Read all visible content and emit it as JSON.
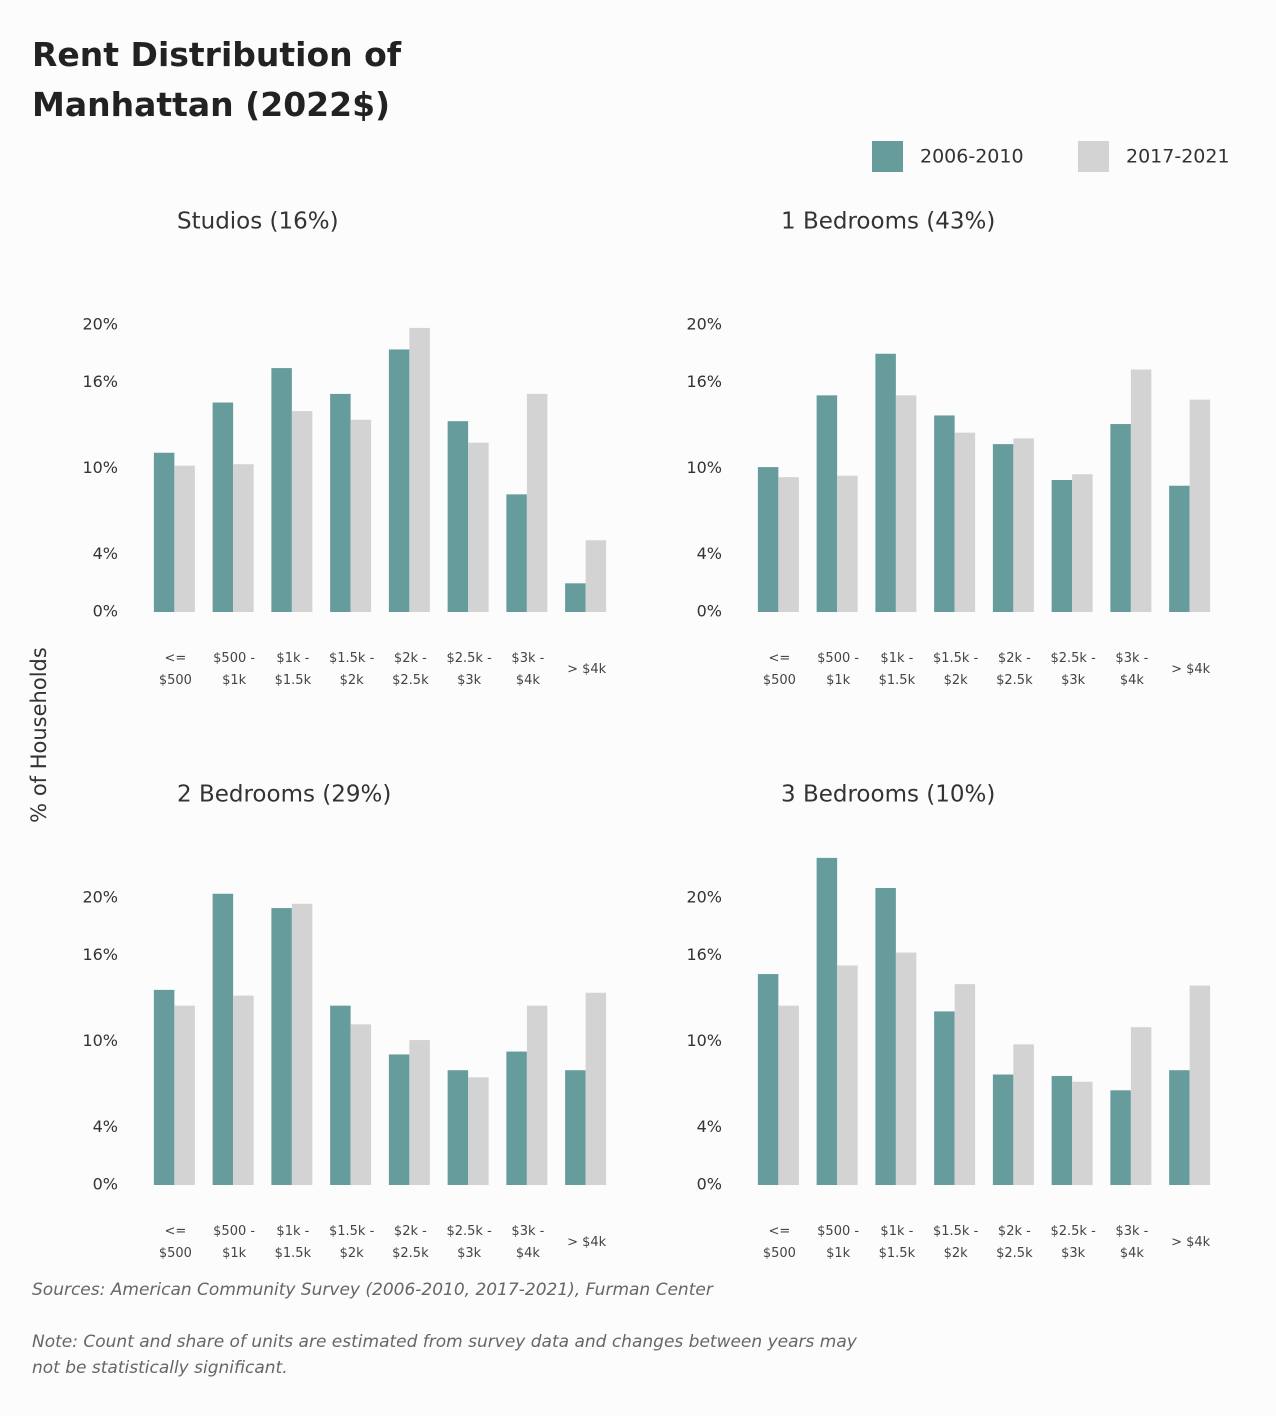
{
  "chart_data": {
    "type": "bar",
    "title": "Rent Distribution of Manhattan (2022$)",
    "y_label": "% of Households",
    "categories": [
      "<= $500",
      "$500 - $1k",
      "$1k - $1.5k",
      "$1.5k - $2k",
      "$2k - $2.5k",
      "$2.5k - $3k",
      "$3k - $4k",
      "> $4k"
    ],
    "series": [
      {
        "name": "2006-2010",
        "color": "#669c9c"
      },
      {
        "name": "2017-2021",
        "color": "#d3d3d3"
      }
    ],
    "ylim": [
      0,
      23
    ],
    "yticks": [
      {
        "value": 0,
        "label": "0%"
      },
      {
        "value": 4,
        "label": "4%"
      },
      {
        "value": 10,
        "label": "10%"
      },
      {
        "value": 16,
        "label": "16%"
      },
      {
        "value": 20,
        "label": "20%"
      }
    ],
    "panels": [
      {
        "title": "Studios (16%)",
        "values": [
          [
            11.1,
            14.6,
            17.0,
            15.2,
            18.3,
            13.3,
            8.2,
            2.0
          ],
          [
            10.2,
            10.3,
            14.0,
            13.4,
            19.8,
            11.8,
            15.2,
            5.0
          ]
        ]
      },
      {
        "title": "1 Bedrooms (43%)",
        "values": [
          [
            10.1,
            15.1,
            18.0,
            13.7,
            11.7,
            9.2,
            13.1,
            8.8
          ],
          [
            9.4,
            9.5,
            15.1,
            12.5,
            12.1,
            9.6,
            16.9,
            14.8
          ]
        ]
      },
      {
        "title": "2 Bedrooms (29%)",
        "values": [
          [
            13.6,
            20.3,
            19.3,
            12.5,
            9.1,
            8.0,
            9.3,
            8.0
          ],
          [
            12.5,
            13.2,
            19.6,
            11.2,
            10.1,
            7.5,
            12.5,
            13.4
          ]
        ]
      },
      {
        "title": "3 Bedrooms (10%)",
        "values": [
          [
            14.7,
            22.8,
            20.7,
            12.1,
            7.7,
            7.6,
            6.6,
            8.0
          ],
          [
            12.5,
            15.3,
            16.2,
            14.0,
            9.8,
            7.2,
            11.0,
            13.9
          ]
        ]
      }
    ]
  },
  "sources": "Sources: American Community Survey (2006-2010, 2017-2021), Furman Center",
  "note": "Note: Count and share of units are estimated from survey data and changes between years may not be statistically significant."
}
